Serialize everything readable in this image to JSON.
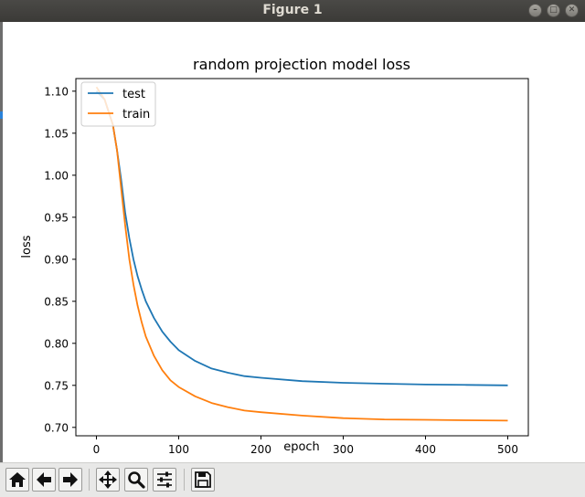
{
  "window": {
    "title": "Figure 1",
    "buttons": [
      "minimize",
      "maximize",
      "close"
    ]
  },
  "toolbar": {
    "buttons": [
      {
        "name": "home-button",
        "icon": "home-icon"
      },
      {
        "name": "back-button",
        "icon": "arrow-left-icon"
      },
      {
        "name": "forward-button",
        "icon": "arrow-right-icon"
      },
      {
        "name": "pan-button",
        "icon": "move-icon"
      },
      {
        "name": "zoom-button",
        "icon": "magnifier-icon"
      },
      {
        "name": "configure-subplots-button",
        "icon": "sliders-icon"
      },
      {
        "name": "save-button",
        "icon": "floppy-disk-icon"
      }
    ]
  },
  "chart_data": {
    "type": "line",
    "title": "random projection model loss",
    "xlabel": "epoch",
    "ylabel": "loss",
    "xlim": [
      -25,
      525
    ],
    "ylim": [
      0.69,
      1.115
    ],
    "xticks": [
      0,
      100,
      200,
      300,
      400,
      500
    ],
    "yticks": [
      0.7,
      0.75,
      0.8,
      0.85,
      0.9,
      0.95,
      1.0,
      1.05,
      1.1
    ],
    "legend_position": "top-left",
    "grid": false,
    "series": [
      {
        "name": "test",
        "color": "#1f77b4",
        "x": [
          0,
          10,
          20,
          25,
          30,
          35,
          40,
          45,
          50,
          55,
          60,
          70,
          80,
          90,
          100,
          120,
          140,
          160,
          180,
          200,
          250,
          300,
          350,
          400,
          450,
          500
        ],
        "y": [
          1.1,
          1.09,
          1.06,
          1.03,
          0.995,
          0.955,
          0.925,
          0.9,
          0.88,
          0.864,
          0.85,
          0.83,
          0.814,
          0.802,
          0.792,
          0.779,
          0.77,
          0.765,
          0.761,
          0.759,
          0.755,
          0.753,
          0.752,
          0.751,
          0.7505,
          0.75
        ]
      },
      {
        "name": "train",
        "color": "#ff7f0e",
        "x": [
          0,
          10,
          20,
          25,
          30,
          35,
          40,
          45,
          50,
          55,
          60,
          70,
          80,
          90,
          100,
          120,
          140,
          160,
          180,
          200,
          250,
          300,
          350,
          400,
          450,
          500
        ],
        "y": [
          1.105,
          1.09,
          1.06,
          1.03,
          0.985,
          0.94,
          0.9,
          0.87,
          0.845,
          0.825,
          0.808,
          0.785,
          0.768,
          0.756,
          0.748,
          0.737,
          0.729,
          0.724,
          0.72,
          0.718,
          0.714,
          0.711,
          0.7095,
          0.709,
          0.7085,
          0.708
        ]
      }
    ]
  }
}
